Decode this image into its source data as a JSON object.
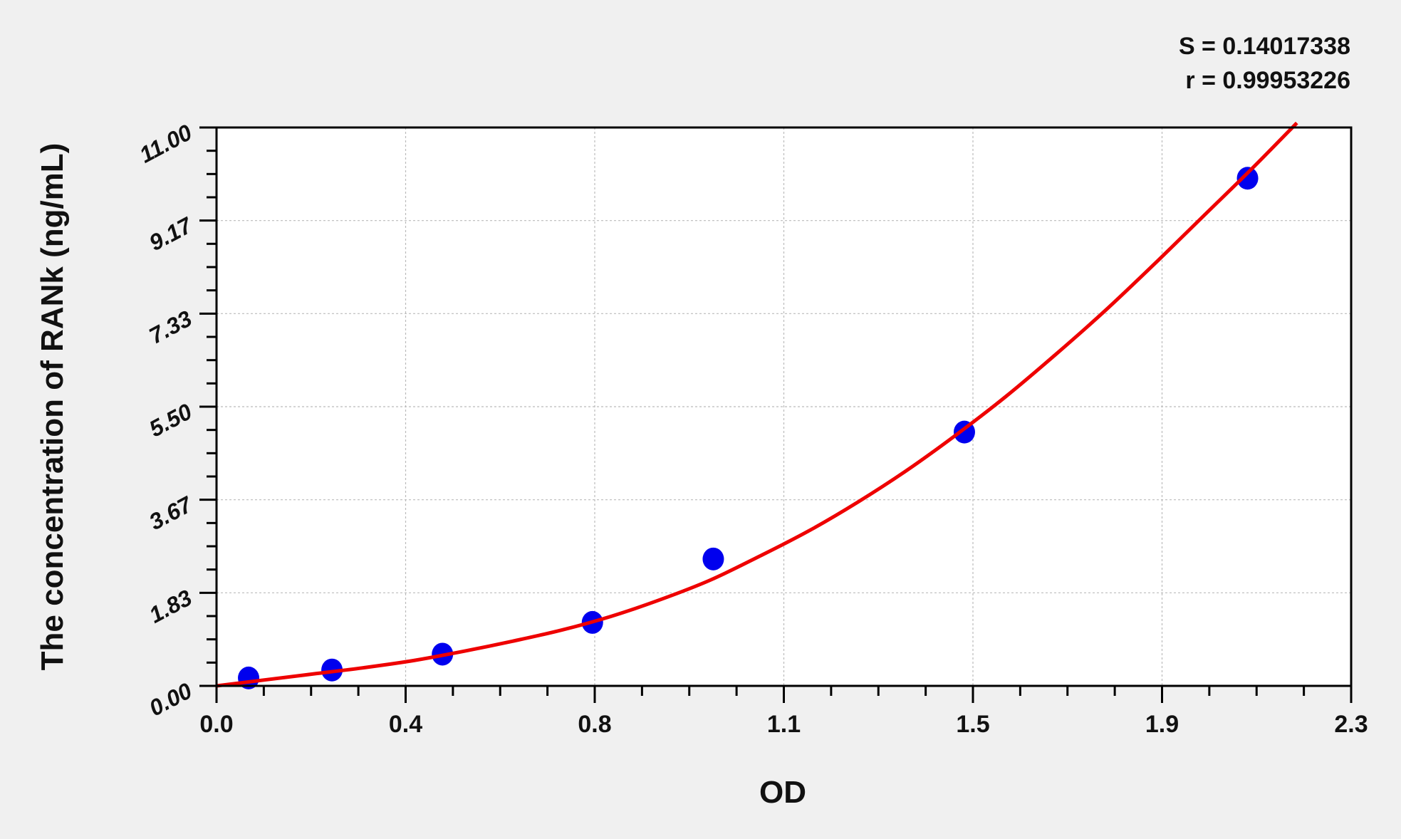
{
  "chart_data": {
    "type": "scatter",
    "title": "",
    "xlabel": "OD",
    "ylabel": "The concentration of RANk (ng/mL)",
    "xlim": [
      0,
      2.3
    ],
    "ylim": [
      0,
      11
    ],
    "x_ticks": [
      "0.0",
      "0.4",
      "0.8",
      "1.1",
      "1.5",
      "1.9",
      "2.3"
    ],
    "y_ticks": [
      "0.00",
      "1.83",
      "3.67",
      "5.50",
      "7.33",
      "9.17",
      "11.00"
    ],
    "grid": true,
    "stats": {
      "s": "S = 0.14017338",
      "r": "r = 0.99953226"
    },
    "colors": {
      "points": "#0000ee",
      "curve": "#ee0000",
      "background": "#f0f0f0",
      "plot": "#ffffff"
    },
    "points": {
      "x": [
        0.065,
        0.234,
        0.458,
        0.762,
        1.007,
        1.516,
        2.09
      ],
      "y": [
        0.156,
        0.313,
        0.625,
        1.25,
        2.5,
        5.0,
        10.0
      ]
    },
    "fit_curve": {
      "x": [
        0.0,
        0.1,
        0.2,
        0.3,
        0.4,
        0.5,
        0.6,
        0.7,
        0.8,
        0.9,
        1.0,
        1.1,
        1.2,
        1.3,
        1.4,
        1.5,
        1.6,
        1.7,
        1.8,
        1.9,
        2.0,
        2.1,
        2.19
      ],
      "y": [
        0.0,
        0.12,
        0.24,
        0.36,
        0.5,
        0.68,
        0.88,
        1.1,
        1.37,
        1.7,
        2.08,
        2.55,
        3.05,
        3.62,
        4.25,
        4.95,
        5.7,
        6.52,
        7.38,
        8.3,
        9.25,
        10.2,
        11.09
      ]
    }
  }
}
